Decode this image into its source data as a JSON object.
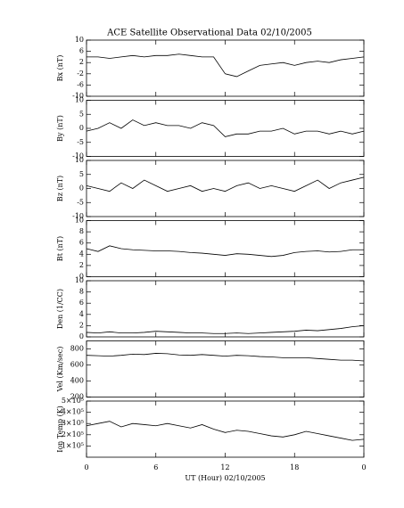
{
  "chart_data": [
    {
      "type": "line",
      "title": "ACE Satellite Observational Data   02/10/2005",
      "ylabel": "Bx (nT)",
      "x": [
        0,
        1,
        2,
        3,
        4,
        5,
        6,
        7,
        8,
        9,
        10,
        11,
        12,
        13,
        14,
        15,
        16,
        17,
        18,
        19,
        20,
        21,
        22,
        23,
        24
      ],
      "values": [
        4,
        4,
        3.5,
        4,
        4.5,
        4,
        4.5,
        4.5,
        5,
        4.5,
        4,
        4,
        -2,
        -3,
        -1,
        1,
        1.5,
        2,
        1,
        2,
        2.5,
        2,
        3,
        3.5,
        4
      ],
      "ylim": [
        -10,
        10
      ],
      "yticks": [
        -10,
        -6,
        -2,
        2,
        6,
        10
      ],
      "color": "#000000"
    },
    {
      "type": "line",
      "ylabel": "By (nT)",
      "x": [
        0,
        1,
        2,
        3,
        4,
        5,
        6,
        7,
        8,
        9,
        10,
        11,
        12,
        13,
        14,
        15,
        16,
        17,
        18,
        19,
        20,
        21,
        22,
        23,
        24
      ],
      "values": [
        -1,
        0,
        2,
        0,
        3,
        1,
        2,
        1,
        1,
        0,
        2,
        1,
        -3,
        -2,
        -2,
        -1,
        -1,
        0,
        -2,
        -1,
        -1,
        -2,
        -1,
        -2,
        -1
      ],
      "ylim": [
        -10,
        10
      ],
      "yticks": [
        -10,
        -5,
        0,
        5,
        10
      ],
      "color": "#000000"
    },
    {
      "type": "line",
      "ylabel": "Bz (nT)",
      "x": [
        0,
        1,
        2,
        3,
        4,
        5,
        6,
        7,
        8,
        9,
        10,
        11,
        12,
        13,
        14,
        15,
        16,
        17,
        18,
        19,
        20,
        21,
        22,
        23,
        24
      ],
      "values": [
        1,
        0,
        -1,
        2,
        0,
        3,
        1,
        -1,
        0,
        1,
        -1,
        0,
        -1,
        1,
        2,
        0,
        1,
        0,
        -1,
        1,
        3,
        0,
        2,
        3,
        4
      ],
      "ylim": [
        -10,
        10
      ],
      "yticks": [
        -10,
        -5,
        0,
        5,
        10
      ],
      "color": "#000000"
    },
    {
      "type": "line",
      "ylabel": "Bt (nT)",
      "x": [
        0,
        1,
        2,
        3,
        4,
        5,
        6,
        7,
        8,
        9,
        10,
        11,
        12,
        13,
        14,
        15,
        16,
        17,
        18,
        19,
        20,
        21,
        22,
        23,
        24
      ],
      "values": [
        5,
        4.5,
        5.5,
        5,
        4.8,
        4.7,
        4.6,
        4.6,
        4.5,
        4.3,
        4.2,
        4,
        3.8,
        4.1,
        4,
        3.8,
        3.6,
        3.8,
        4.3,
        4.5,
        4.6,
        4.4,
        4.5,
        4.8,
        4.8
      ],
      "ylim": [
        0,
        10
      ],
      "yticks": [
        0,
        2,
        4,
        6,
        8,
        10
      ],
      "color": "#000000"
    },
    {
      "type": "line",
      "ylabel": "Den (1/CC)",
      "x": [
        0,
        1,
        2,
        3,
        4,
        5,
        6,
        7,
        8,
        9,
        10,
        11,
        12,
        13,
        14,
        15,
        16,
        17,
        18,
        19,
        20,
        21,
        22,
        23,
        24
      ],
      "values": [
        0.8,
        0.7,
        0.9,
        0.7,
        0.7,
        0.8,
        1,
        0.9,
        0.8,
        0.7,
        0.7,
        0.6,
        0.6,
        0.7,
        0.6,
        0.7,
        0.8,
        0.9,
        1,
        1.2,
        1.1,
        1.3,
        1.5,
        1.8,
        2
      ],
      "ylim": [
        0,
        10
      ],
      "yticks": [
        0,
        2,
        4,
        6,
        8,
        10
      ],
      "color": "#000000"
    },
    {
      "type": "line",
      "ylabel": "Vel (Km/sec)",
      "x": [
        0,
        1,
        2,
        3,
        4,
        5,
        6,
        7,
        8,
        9,
        10,
        11,
        12,
        13,
        14,
        15,
        16,
        17,
        18,
        19,
        20,
        21,
        22,
        23,
        24
      ],
      "values": [
        720,
        715,
        710,
        720,
        735,
        730,
        745,
        740,
        725,
        720,
        730,
        720,
        710,
        720,
        715,
        705,
        700,
        690,
        690,
        690,
        680,
        670,
        660,
        660,
        650
      ],
      "ylim": [
        200,
        900
      ],
      "yticks": [
        200,
        400,
        600,
        800
      ],
      "color": "#000000"
    },
    {
      "type": "line",
      "ylabel": "Ion Temp (K)",
      "xlabel": "UT (Hour)  02/10/2005",
      "x": [
        0,
        1,
        2,
        3,
        4,
        5,
        6,
        7,
        8,
        9,
        10,
        11,
        12,
        13,
        14,
        15,
        16,
        17,
        18,
        19,
        20,
        21,
        22,
        23,
        24
      ],
      "values": [
        280000,
        300000,
        320000,
        270000,
        300000,
        290000,
        280000,
        300000,
        280000,
        260000,
        290000,
        250000,
        220000,
        240000,
        230000,
        210000,
        190000,
        180000,
        200000,
        230000,
        210000,
        190000,
        170000,
        150000,
        160000
      ],
      "ylim": [
        0,
        500000
      ],
      "yticks": [
        {
          "value": 100000,
          "label": "1×10⁵"
        },
        {
          "value": 200000,
          "label": "2×10⁵"
        },
        {
          "value": 300000,
          "label": "3×10⁵"
        },
        {
          "value": 400000,
          "label": "4×10⁵"
        },
        {
          "value": 500000,
          "label": "5×10⁵"
        }
      ],
      "xlim": [
        0,
        24
      ],
      "xticks": [
        0,
        6,
        12,
        18,
        {
          "value": 24,
          "label": "0"
        }
      ],
      "color": "#000000"
    }
  ]
}
